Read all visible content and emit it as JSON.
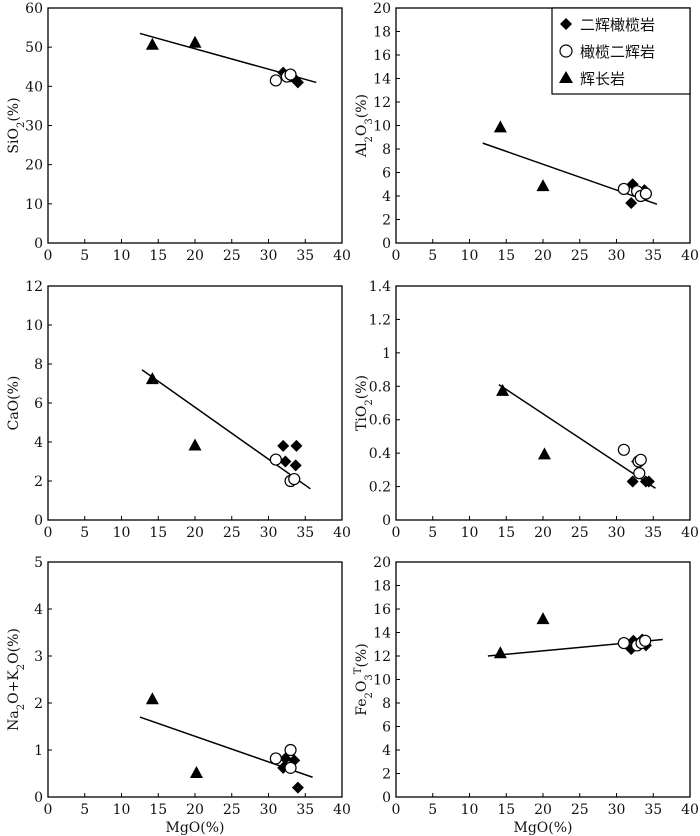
{
  "chart_data": [
    {
      "type": "scatter",
      "panel": "sio2",
      "xlabel": "MgO(%)",
      "ylabel_parts": [
        "SiO",
        "2",
        "(%)"
      ],
      "xlim": [
        0,
        40
      ],
      "ylim": [
        0,
        60
      ],
      "xticks": [
        0,
        5,
        10,
        15,
        20,
        25,
        30,
        35,
        40
      ],
      "yticks": [
        0,
        10,
        20,
        30,
        40,
        50,
        60
      ],
      "show_xlabel": false,
      "series": [
        {
          "name": "二辉橄榄岩",
          "marker": "diamond",
          "points": [
            [
              32,
              43.5
            ],
            [
              33,
              42.5
            ],
            [
              33.5,
              42
            ],
            [
              34,
              41
            ]
          ]
        },
        {
          "name": "橄榄二辉岩",
          "marker": "circle",
          "points": [
            [
              31,
              41.5
            ],
            [
              32.5,
              42.5
            ],
            [
              33,
              43
            ]
          ]
        },
        {
          "name": "辉长岩",
          "marker": "triangle",
          "points": [
            [
              14.2,
              50.5
            ],
            [
              20,
              51
            ]
          ]
        }
      ],
      "trendline": [
        [
          12.5,
          53.5
        ],
        [
          36.5,
          41
        ]
      ]
    },
    {
      "type": "scatter",
      "panel": "al2o3",
      "xlabel": "MgO(%)",
      "ylabel_parts": [
        "Al",
        "2",
        "O",
        "3",
        "(%)"
      ],
      "xlim": [
        0,
        40
      ],
      "ylim": [
        0,
        20
      ],
      "xticks": [
        0,
        5,
        10,
        15,
        20,
        25,
        30,
        35,
        40
      ],
      "yticks": [
        0,
        2,
        4,
        6,
        8,
        10,
        12,
        14,
        16,
        18,
        20
      ],
      "show_xlabel": false,
      "series": [
        {
          "name": "二辉橄榄岩",
          "marker": "diamond",
          "points": [
            [
              32.2,
              5
            ],
            [
              33,
              4.3
            ],
            [
              33.8,
              4.5
            ],
            [
              32,
              3.4
            ],
            [
              34,
              4.1
            ]
          ]
        },
        {
          "name": "橄榄二辉岩",
          "marker": "circle",
          "points": [
            [
              31,
              4.6
            ],
            [
              32.8,
              4.4
            ],
            [
              33.3,
              4.0
            ],
            [
              34,
              4.2
            ]
          ]
        },
        {
          "name": "辉长岩",
          "marker": "triangle",
          "points": [
            [
              14.2,
              9.8
            ],
            [
              20,
              4.8
            ]
          ]
        }
      ],
      "trendline": [
        [
          11.8,
          8.5
        ],
        [
          35.5,
          3.3
        ]
      ]
    },
    {
      "type": "scatter",
      "panel": "cao",
      "xlabel": "MgO(%)",
      "ylabel_parts": [
        "CaO(%)"
      ],
      "xlim": [
        0,
        40
      ],
      "ylim": [
        0,
        12
      ],
      "xticks": [
        0,
        5,
        10,
        15,
        20,
        25,
        30,
        35,
        40
      ],
      "yticks": [
        0,
        2,
        4,
        6,
        8,
        10,
        12
      ],
      "show_xlabel": false,
      "series": [
        {
          "name": "二辉橄榄岩",
          "marker": "diamond",
          "points": [
            [
              32,
              3.8
            ],
            [
              33.8,
              3.8
            ],
            [
              32.3,
              3.0
            ],
            [
              33.7,
              2.8
            ]
          ]
        },
        {
          "name": "橄榄二辉岩",
          "marker": "circle",
          "points": [
            [
              31,
              3.1
            ],
            [
              33,
              2.0
            ],
            [
              33.5,
              2.1
            ]
          ]
        },
        {
          "name": "辉长岩",
          "marker": "triangle",
          "points": [
            [
              14.2,
              7.2
            ],
            [
              20,
              3.8
            ]
          ]
        }
      ],
      "trendline": [
        [
          12.8,
          7.7
        ],
        [
          35.7,
          1.6
        ]
      ]
    },
    {
      "type": "scatter",
      "panel": "tio2",
      "xlabel": "MgO(%)",
      "ylabel_parts": [
        "TiO",
        "2",
        "(%)"
      ],
      "xlim": [
        0,
        40
      ],
      "ylim": [
        0,
        1.4
      ],
      "xticks": [
        0,
        5,
        10,
        15,
        20,
        25,
        30,
        35,
        40
      ],
      "yticks": [
        0,
        0.2,
        0.4,
        0.6,
        0.8,
        1,
        1.2,
        1.4
      ],
      "show_xlabel": false,
      "series": [
        {
          "name": "二辉橄榄岩",
          "marker": "diamond",
          "points": [
            [
              32.2,
              0.23
            ],
            [
              32.8,
              0.35
            ],
            [
              34,
              0.23
            ],
            [
              34.4,
              0.23
            ]
          ]
        },
        {
          "name": "橄榄二辉岩",
          "marker": "circle",
          "points": [
            [
              31,
              0.42
            ],
            [
              33,
              0.35
            ],
            [
              33.3,
              0.36
            ],
            [
              33.1,
              0.28
            ]
          ]
        },
        {
          "name": "辉长岩",
          "marker": "triangle",
          "points": [
            [
              14.5,
              0.77
            ],
            [
              20.2,
              0.39
            ]
          ]
        }
      ],
      "trendline": [
        [
          14,
          0.81
        ],
        [
          35.3,
          0.19
        ]
      ]
    },
    {
      "type": "scatter",
      "panel": "alkali",
      "xlabel": "MgO(%)",
      "ylabel_parts": [
        "Na",
        "2",
        "O+K",
        "2",
        "O(%)"
      ],
      "xlim": [
        0,
        40
      ],
      "ylim": [
        0,
        5
      ],
      "xticks": [
        0,
        5,
        10,
        15,
        20,
        25,
        30,
        35,
        40
      ],
      "yticks": [
        0,
        1,
        2,
        3,
        4,
        5
      ],
      "show_xlabel": true,
      "series": [
        {
          "name": "二辉橄榄岩",
          "marker": "diamond",
          "points": [
            [
              32,
              0.62
            ],
            [
              32.3,
              0.82
            ],
            [
              33.5,
              0.78
            ],
            [
              34,
              0.2
            ]
          ]
        },
        {
          "name": "橄榄二辉岩",
          "marker": "circle",
          "points": [
            [
              31,
              0.82
            ],
            [
              33,
              1.0
            ],
            [
              33,
              0.62
            ]
          ]
        },
        {
          "name": "辉长岩",
          "marker": "triangle",
          "points": [
            [
              14.2,
              2.07
            ],
            [
              20.2,
              0.5
            ]
          ]
        }
      ],
      "trendline": [
        [
          12.5,
          1.7
        ],
        [
          36,
          0.42
        ]
      ]
    },
    {
      "type": "scatter",
      "panel": "fe2o3t",
      "xlabel": "MgO(%)",
      "ylabel_parts": [
        "Fe",
        "2",
        "O",
        "3",
        "T",
        "(%)"
      ],
      "xlim": [
        0,
        40
      ],
      "ylim": [
        0,
        20
      ],
      "xticks": [
        0,
        5,
        10,
        15,
        20,
        25,
        30,
        35,
        40
      ],
      "yticks": [
        0,
        2,
        4,
        6,
        8,
        10,
        12,
        14,
        16,
        18,
        20
      ],
      "show_xlabel": true,
      "series": [
        {
          "name": "二辉橄榄岩",
          "marker": "diamond",
          "points": [
            [
              32,
              12.6
            ],
            [
              32.3,
              13.3
            ],
            [
              33.5,
              13.4
            ],
            [
              34,
              12.9
            ]
          ]
        },
        {
          "name": "橄榄二辉岩",
          "marker": "circle",
          "points": [
            [
              31,
              13.1
            ],
            [
              32.8,
              12.9
            ],
            [
              33.4,
              13.1
            ],
            [
              33.9,
              13.3
            ]
          ]
        },
        {
          "name": "辉长岩",
          "marker": "triangle",
          "points": [
            [
              14.2,
              12.2
            ],
            [
              20,
              15.1
            ]
          ]
        }
      ],
      "trendline": [
        [
          12.5,
          12.0
        ],
        [
          36.3,
          13.4
        ]
      ]
    }
  ],
  "legend": {
    "items": [
      {
        "marker": "diamond",
        "label": "二辉橄榄岩"
      },
      {
        "marker": "circle",
        "label": "橄榄二辉岩"
      },
      {
        "marker": "triangle",
        "label": "辉长岩"
      }
    ]
  }
}
